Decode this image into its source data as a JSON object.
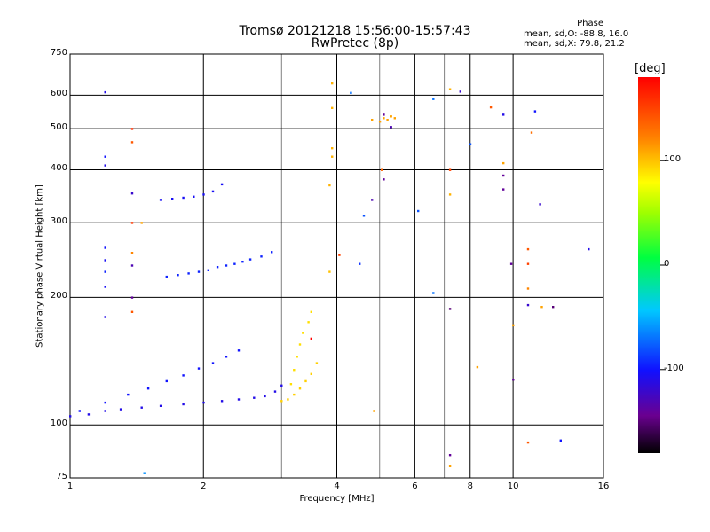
{
  "chart_data": {
    "type": "scatter",
    "title": "Tromsø 20121218 15:56:00-15:57:43",
    "subtitle": "RwPretec (8p)",
    "xlabel": "Frequency [MHz]",
    "ylabel": "Stationary phase Virtual Height [km]",
    "x_scale": "log",
    "y_scale": "log",
    "xlim": [
      1,
      16
    ],
    "ylim": [
      75,
      750
    ],
    "x_ticks": [
      1,
      2,
      4,
      6,
      8,
      10,
      16
    ],
    "x_tick_labels": [
      "1",
      "2",
      "4",
      "6",
      "8",
      "10",
      "16"
    ],
    "y_ticks": [
      75,
      100,
      200,
      300,
      400,
      500,
      600,
      750
    ],
    "y_tick_labels": [
      "75",
      "100",
      "200",
      "300",
      "400",
      "500",
      "600",
      "750"
    ],
    "grid": true,
    "stats": {
      "header": "Phase",
      "line_o": "mean, sd,O: -88.8, 16.0",
      "line_x": "mean, sd,X:  79.8, 21.2"
    },
    "colorbar": {
      "label": "[deg]",
      "range": [
        -180,
        180
      ],
      "ticks": [
        100,
        0,
        -100
      ],
      "tick_labels": [
        "100",
        "0",
        "-100"
      ]
    },
    "traces": [
      {
        "name": "",
        "color_phase": -110,
        "x": [
          1.0,
          1.1,
          1.2,
          1.3,
          1.45,
          1.6,
          1.8,
          2.0,
          2.2,
          2.4,
          2.6,
          2.75,
          2.9,
          3.0
        ],
        "y": [
          105,
          106,
          108,
          109,
          110,
          111,
          112,
          113,
          114,
          115,
          116,
          117,
          120,
          124
        ]
      },
      {
        "name": "",
        "color_phase": -100,
        "x": [
          1.05,
          1.2,
          1.35,
          1.5,
          1.65,
          1.8,
          1.95,
          2.1,
          2.25,
          2.4
        ],
        "y": [
          108,
          113,
          118,
          122,
          127,
          131,
          136,
          140,
          145,
          150
        ]
      },
      {
        "name": "",
        "color_phase": -95,
        "x": [
          1.65,
          1.75,
          1.85,
          1.95,
          2.05,
          2.15,
          2.25,
          2.35,
          2.45,
          2.55,
          2.7,
          2.85
        ],
        "y": [
          224,
          226,
          228,
          230,
          232,
          236,
          238,
          240,
          243,
          246,
          250,
          256
        ]
      },
      {
        "name": "",
        "color_phase": -105,
        "x": [
          1.6,
          1.7,
          1.8,
          1.9,
          2.0,
          2.1
        ],
        "y": [
          340,
          342,
          344,
          346,
          350,
          356
        ]
      },
      {
        "name": "",
        "color_phase": 95,
        "x": [
          3.0,
          3.1,
          3.2,
          3.3,
          3.4,
          3.5,
          3.6
        ],
        "y": [
          114,
          115,
          118,
          122,
          127,
          132,
          140
        ]
      },
      {
        "name": "",
        "color_phase": 90,
        "x": [
          3.15,
          3.2,
          3.25,
          3.3,
          3.35,
          3.45,
          3.5
        ],
        "y": [
          125,
          135,
          145,
          155,
          165,
          175,
          185
        ]
      },
      {
        "name": "",
        "color_phase": 105,
        "x": [
          3.9,
          3.9,
          3.9,
          3.9
        ],
        "y": [
          430,
          450,
          560,
          640
        ]
      },
      {
        "name": "",
        "color_phase": 110,
        "x": [
          4.8,
          5.0,
          5.1,
          5.2,
          5.3,
          5.4
        ],
        "y": [
          525,
          520,
          530,
          525,
          535,
          530
        ]
      }
    ],
    "scattered_points": [
      {
        "x": 1.2,
        "y": 610,
        "phase": -110
      },
      {
        "x": 1.2,
        "y": 410,
        "phase": -110
      },
      {
        "x": 1.2,
        "y": 430,
        "phase": -100
      },
      {
        "x": 1.2,
        "y": 262,
        "phase": -100
      },
      {
        "x": 1.2,
        "y": 245,
        "phase": -105
      },
      {
        "x": 1.2,
        "y": 230,
        "phase": -95
      },
      {
        "x": 1.2,
        "y": 212,
        "phase": -105
      },
      {
        "x": 1.2,
        "y": 180,
        "phase": -110
      },
      {
        "x": 1.38,
        "y": 500,
        "phase": 160
      },
      {
        "x": 1.38,
        "y": 465,
        "phase": 140
      },
      {
        "x": 1.38,
        "y": 352,
        "phase": -120
      },
      {
        "x": 1.38,
        "y": 300,
        "phase": 155
      },
      {
        "x": 1.38,
        "y": 255,
        "phase": 120
      },
      {
        "x": 1.38,
        "y": 238,
        "phase": -130
      },
      {
        "x": 1.38,
        "y": 200,
        "phase": -140
      },
      {
        "x": 1.38,
        "y": 185,
        "phase": 140
      },
      {
        "x": 1.45,
        "y": 300,
        "phase": 110
      },
      {
        "x": 1.47,
        "y": 77,
        "phase": -60
      },
      {
        "x": 2.2,
        "y": 370,
        "phase": -105
      },
      {
        "x": 3.5,
        "y": 160,
        "phase": 180
      },
      {
        "x": 3.85,
        "y": 230,
        "phase": 100
      },
      {
        "x": 3.85,
        "y": 368,
        "phase": 105
      },
      {
        "x": 4.05,
        "y": 252,
        "phase": 150
      },
      {
        "x": 4.3,
        "y": 608,
        "phase": -70
      },
      {
        "x": 4.5,
        "y": 240,
        "phase": -90
      },
      {
        "x": 4.6,
        "y": 312,
        "phase": -80
      },
      {
        "x": 4.8,
        "y": 340,
        "phase": -130
      },
      {
        "x": 4.85,
        "y": 108,
        "phase": 110
      },
      {
        "x": 5.1,
        "y": 380,
        "phase": -140
      },
      {
        "x": 5.1,
        "y": 540,
        "phase": -140
      },
      {
        "x": 5.05,
        "y": 400,
        "phase": 135
      },
      {
        "x": 5.3,
        "y": 505,
        "phase": -130
      },
      {
        "x": 6.1,
        "y": 320,
        "phase": -80
      },
      {
        "x": 6.6,
        "y": 588,
        "phase": -70
      },
      {
        "x": 6.6,
        "y": 205,
        "phase": -70
      },
      {
        "x": 7.2,
        "y": 620,
        "phase": 105
      },
      {
        "x": 7.2,
        "y": 400,
        "phase": 150
      },
      {
        "x": 7.2,
        "y": 350,
        "phase": 105
      },
      {
        "x": 7.2,
        "y": 188,
        "phase": -150
      },
      {
        "x": 7.2,
        "y": 85,
        "phase": -140
      },
      {
        "x": 7.2,
        "y": 80,
        "phase": 110
      },
      {
        "x": 7.6,
        "y": 612,
        "phase": -120
      },
      {
        "x": 8.0,
        "y": 460,
        "phase": -80
      },
      {
        "x": 8.3,
        "y": 137,
        "phase": 110
      },
      {
        "x": 8.9,
        "y": 562,
        "phase": 140
      },
      {
        "x": 9.5,
        "y": 540,
        "phase": -110
      },
      {
        "x": 9.5,
        "y": 388,
        "phase": -140
      },
      {
        "x": 9.5,
        "y": 360,
        "phase": -140
      },
      {
        "x": 9.5,
        "y": 415,
        "phase": 110
      },
      {
        "x": 9.9,
        "y": 240,
        "phase": -140
      },
      {
        "x": 10.0,
        "y": 128,
        "phase": -140
      },
      {
        "x": 10.0,
        "y": 172,
        "phase": 110
      },
      {
        "x": 10.8,
        "y": 260,
        "phase": 140
      },
      {
        "x": 10.8,
        "y": 240,
        "phase": 150
      },
      {
        "x": 10.8,
        "y": 210,
        "phase": 120
      },
      {
        "x": 10.8,
        "y": 192,
        "phase": -120
      },
      {
        "x": 10.8,
        "y": 91,
        "phase": 140
      },
      {
        "x": 11.0,
        "y": 490,
        "phase": 130
      },
      {
        "x": 11.2,
        "y": 550,
        "phase": -100
      },
      {
        "x": 11.5,
        "y": 332,
        "phase": -120
      },
      {
        "x": 11.6,
        "y": 190,
        "phase": 110
      },
      {
        "x": 12.3,
        "y": 190,
        "phase": -150
      },
      {
        "x": 12.8,
        "y": 92,
        "phase": -100
      },
      {
        "x": 14.8,
        "y": 260,
        "phase": -110
      }
    ]
  }
}
